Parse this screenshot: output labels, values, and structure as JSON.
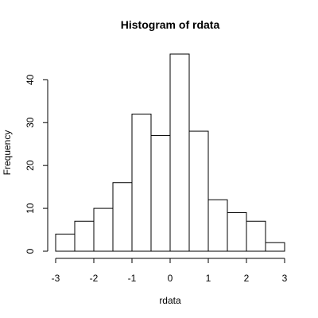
{
  "chart_data": {
    "type": "bar",
    "title": "Histogram of rdata",
    "xlabel": "rdata",
    "ylabel": "Frequency",
    "bins": [
      {
        "start": -3.0,
        "end": -2.5,
        "count": 4
      },
      {
        "start": -2.5,
        "end": -2.0,
        "count": 7
      },
      {
        "start": -2.0,
        "end": -1.5,
        "count": 10
      },
      {
        "start": -1.5,
        "end": -1.0,
        "count": 16
      },
      {
        "start": -1.0,
        "end": -0.5,
        "count": 32
      },
      {
        "start": -0.5,
        "end": 0.0,
        "count": 27
      },
      {
        "start": 0.0,
        "end": 0.5,
        "count": 46
      },
      {
        "start": 0.5,
        "end": 1.0,
        "count": 28
      },
      {
        "start": 1.0,
        "end": 1.5,
        "count": 12
      },
      {
        "start": 1.5,
        "end": 2.0,
        "count": 9
      },
      {
        "start": 2.0,
        "end": 2.5,
        "count": 7
      },
      {
        "start": 2.5,
        "end": 3.0,
        "count": 2
      }
    ],
    "xlim": [
      -3,
      3
    ],
    "ylim": [
      0,
      46
    ],
    "x_ticks": [
      "-3",
      "-2",
      "-1",
      "0",
      "1",
      "2",
      "3"
    ],
    "y_ticks": [
      "0",
      "10",
      "20",
      "30",
      "40"
    ],
    "grid": false,
    "bar_fill": "#ffffff",
    "bar_stroke": "#000000"
  }
}
